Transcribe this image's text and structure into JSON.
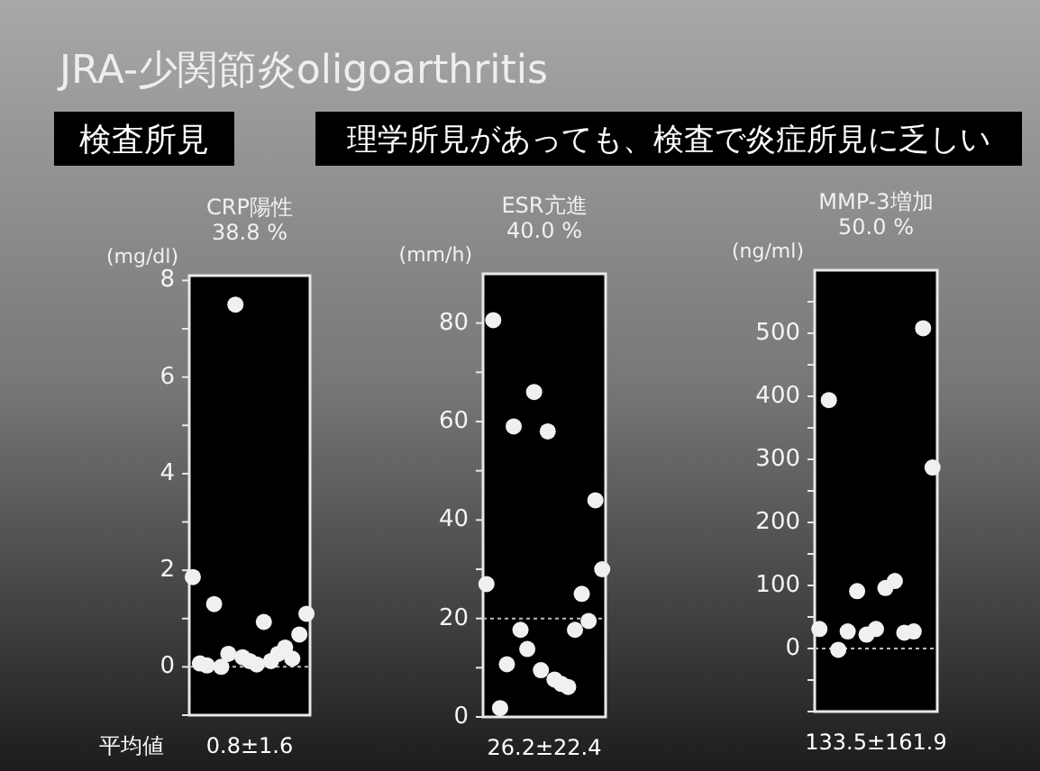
{
  "chart_data": [
    {
      "type": "scatter",
      "title": "CRP陽性",
      "subtitle": "38.8 %",
      "ylabel": "(mg/dl)",
      "marker": "circle",
      "grid": false,
      "categories": [
        null,
        null,
        null,
        null,
        null,
        null,
        null,
        null,
        null,
        null,
        null,
        null,
        null,
        null,
        null,
        null,
        null
      ],
      "series": [
        {
          "color": "#f0f0f0",
          "values": [
            1.86,
            0.07,
            0.03,
            1.3,
            0.0,
            0.27,
            7.5,
            0.2,
            0.12,
            0.05,
            0.93,
            0.12,
            0.27,
            0.4,
            0.17,
            0.67,
            1.1
          ]
        }
      ],
      "ylim": [
        -1,
        8.1
      ],
      "yticks": [
        {
          "value": -1,
          "label": null
        },
        0,
        {
          "value": 1,
          "label": null
        },
        2,
        {
          "value": 3,
          "label": null
        },
        4,
        {
          "value": 5,
          "label": null
        },
        6,
        {
          "value": 7,
          "label": null
        },
        8
      ],
      "ref_lines": [
        {
          "axis": "y",
          "value": 0,
          "line_style": "dotted",
          "color": "#bbbbbb"
        }
      ],
      "annotations": [
        "JRA-少関節炎oligoarthritis",
        "検査所見",
        "理学所見があっても、検査で炎症所見に乏しい",
        "平均値",
        "0.8±1.6"
      ]
    },
    {
      "type": "scatter",
      "title": "ESR亢進",
      "subtitle": "40.0 %",
      "ylabel": "(mm/h)",
      "marker": "circle",
      "grid": false,
      "categories": [
        null,
        null,
        null,
        null,
        null,
        null,
        null,
        null,
        null,
        null,
        null,
        null,
        null,
        null,
        null,
        null,
        null,
        null
      ],
      "series": [
        {
          "color": "#f0f0f0",
          "values": [
            27,
            80.6,
            1.8,
            10.7,
            59,
            17.7,
            13.8,
            66,
            9.5,
            58,
            7.6,
            6.7,
            6.1,
            17.7,
            25,
            19.5,
            44,
            30
          ]
        }
      ],
      "ylim": [
        0,
        90
      ],
      "yticks": [
        0,
        {
          "value": 10,
          "label": null
        },
        20,
        {
          "value": 30,
          "label": null
        },
        40,
        {
          "value": 50,
          "label": null
        },
        60,
        {
          "value": 70,
          "label": null
        },
        80
      ],
      "ref_lines": [
        {
          "axis": "y",
          "value": 20,
          "line_style": "dotted",
          "color": "#bbbbbb"
        }
      ],
      "annotations": [
        "26.2±22.4"
      ]
    },
    {
      "type": "scatter",
      "title": "MMP-3増加",
      "subtitle": "50.0 %",
      "ylabel": "(ng/ml)",
      "marker": "circle",
      "grid": false,
      "categories": [
        null,
        null,
        null,
        null,
        null,
        null,
        null,
        null,
        null,
        null,
        null,
        null,
        null
      ],
      "series": [
        {
          "color": "#f0f0f0",
          "values": [
            31,
            394,
            -2,
            27,
            91,
            22,
            31,
            96,
            107,
            25,
            27,
            508,
            287
          ]
        }
      ],
      "ylim": [
        -100,
        600
      ],
      "yticks": [
        {
          "value": -100,
          "label": null
        },
        {
          "value": -50,
          "label": null
        },
        0,
        {
          "value": 50,
          "label": null
        },
        100,
        {
          "value": 150,
          "label": null
        },
        200,
        {
          "value": 250,
          "label": null
        },
        300,
        {
          "value": 350,
          "label": null
        },
        400,
        {
          "value": 450,
          "label": null
        },
        500,
        {
          "value": 550,
          "label": null
        }
      ],
      "ref_lines": [
        {
          "axis": "y",
          "value": 0,
          "line_style": "dotted",
          "color": "#bbbbbb"
        }
      ],
      "annotations": [
        "133.5±161.9"
      ]
    }
  ]
}
